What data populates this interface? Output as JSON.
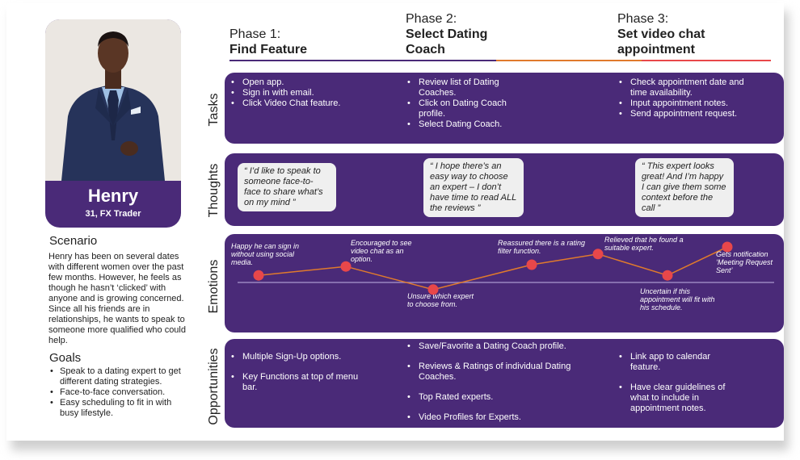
{
  "persona": {
    "name": "Henry",
    "subtitle": "31, FX Trader"
  },
  "scenario": {
    "heading": "Scenario",
    "text": "Henry has been on several dates with different women over the past few months. However, he feels as though he hasn’t ‘clicked’ with anyone and is growing concerned. Since all his friends are in relationships, he wants to speak to someone more qualified who could help."
  },
  "goals": {
    "heading": "Goals",
    "items": [
      "Speak to a dating expert to get different dating strategies.",
      "Face-to-face conversation.",
      "Easy scheduling to fit in with busy lifestyle."
    ]
  },
  "phases": [
    {
      "label": "Phase 1:",
      "title": "Find Feature"
    },
    {
      "label": "Phase 2:",
      "title": "Select Dating Coach"
    },
    {
      "label": "Phase 3:",
      "title": "Set video chat appointment"
    }
  ],
  "row_labels": {
    "tasks": "Tasks",
    "thoughts": "Thoughts",
    "emotions": "Emotions",
    "opportunities": "Opportunities"
  },
  "tasks": [
    [
      "Open app.",
      "Sign in with email.",
      "Click Video Chat feature."
    ],
    [
      "Review list of Dating Coaches.",
      "Click on Dating Coach profile.",
      "Select Dating Coach."
    ],
    [
      "Check appointment date and time availability.",
      "Input appointment notes.",
      "Send appointment request."
    ]
  ],
  "thoughts": [
    "“ I’d like to speak to someone face-to-face to share what’s on my mind  ”",
    "“ I hope there’s an easy way to choose an expert – I don’t have time to read ALL the reviews ”",
    "“ This expert looks great! And I’m happy I can give them some context before the call ”"
  ],
  "emotions": [
    {
      "label": "Happy he can sign in without using social media.",
      "level": 0.2
    },
    {
      "label": "Encouraged to see video chat as an option.",
      "level": 0.45
    },
    {
      "label": "Unsure which expert to choose from.",
      "level": -0.2
    },
    {
      "label": "Reassured there is a rating filter function.",
      "level": 0.5
    },
    {
      "label": "Relieved that he found a suitable expert.",
      "level": 0.8
    },
    {
      "label": "Uncertain if this appointment will fit with his schedule.",
      "level": 0.2
    },
    {
      "label": "Gets notification ‘Meeting Request Sent’",
      "level": 1.0
    }
  ],
  "opportunities": [
    [
      "Multiple Sign-Up options.",
      "Key Functions at top of menu bar."
    ],
    [
      "Save/Favorite a Dating Coach profile.",
      "Reviews & Ratings of individual Dating Coaches.",
      "Top Rated experts.",
      "Video Profiles for Experts."
    ],
    [
      "Link app to calendar feature.",
      "Have clear guidelines of what to include in appointment notes."
    ]
  ],
  "colors": {
    "panel": "#4a2a78",
    "emotion_dot": "#e8474a",
    "emotion_line": "#e07a2c",
    "baseline": "#9a86c0",
    "phase_line_1": "#4a2a78",
    "phase_line_2": "#e07a2c",
    "phase_line_3": "#e8474a"
  }
}
